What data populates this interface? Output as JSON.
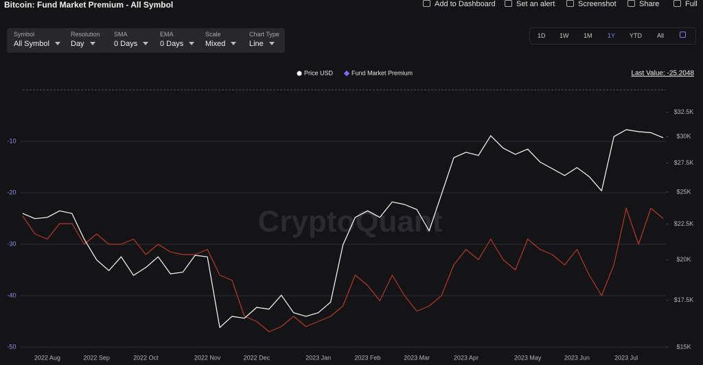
{
  "header": {
    "title": "Bitcoin: Fund Market Premium - All Symbol",
    "tools": [
      "Add to Dashboard",
      "Set an alert",
      "Screenshot",
      "Share",
      "Full"
    ]
  },
  "controls": [
    {
      "label": "Symbol",
      "value": "All Symbol"
    },
    {
      "label": "Resolution",
      "value": "Day"
    },
    {
      "label": "SMA",
      "value": "0 Days"
    },
    {
      "label": "EMA",
      "value": "0 Days"
    },
    {
      "label": "Scale",
      "value": "Mixed"
    },
    {
      "label": "Chart Type",
      "value": "Line"
    }
  ],
  "ranges": [
    "1D",
    "1W",
    "1M",
    "1Y",
    "YTD",
    "All"
  ],
  "chart_data": {
    "type": "line",
    "last_value": "Last Value: -25.2048",
    "watermark": "CryptoQuant",
    "categories": [
      null,
      null,
      "2022 Aug",
      null,
      null,
      null,
      "2022 Sep",
      null,
      null,
      null,
      "2022 Oct",
      null,
      null,
      null,
      null,
      "2022 Nov",
      null,
      null,
      null,
      "2022 Dec",
      null,
      null,
      null,
      null,
      "2023 Jan",
      null,
      null,
      null,
      "2023 Feb",
      null,
      null,
      null,
      "2023 Mar",
      null,
      null,
      null,
      "2023 Apr",
      null,
      null,
      null,
      null,
      "2023 May",
      null,
      null,
      null,
      "2023 Jun",
      null,
      null,
      null,
      "2023 Jul",
      null,
      null,
      null
    ],
    "series": [
      {
        "name": "Price USD",
        "color": "#ffffff",
        "axis": "y2",
        "values": [
          23300,
          22900,
          23000,
          23500,
          23300,
          21400,
          20000,
          19300,
          20200,
          19000,
          19500,
          20200,
          19100,
          19200,
          20300,
          20200,
          16000,
          16600,
          16500,
          17100,
          17000,
          17800,
          16800,
          16600,
          16800,
          17400,
          21000,
          23000,
          23500,
          23000,
          24200,
          24000,
          23600,
          22000,
          24800,
          28000,
          28500,
          28200,
          30100,
          28900,
          28300,
          28800,
          27600,
          27000,
          26400,
          27100,
          26300,
          25100,
          30000,
          30700,
          30500,
          30400,
          29900
        ]
      },
      {
        "name": "Fund Market Premium",
        "color": "#b33a2c",
        "values": [
          -24.5,
          -28,
          -29,
          -26,
          -26,
          -30,
          -28,
          -30,
          -30,
          -29,
          -32,
          -30,
          -31.5,
          -32,
          -32,
          -31,
          -36,
          -37,
          -44,
          -45,
          -47,
          -46,
          -44,
          -46,
          -45,
          -44,
          -42,
          -36,
          -38,
          -41,
          -36,
          -40,
          -43,
          -42,
          -40,
          -34,
          -31,
          -33,
          -29,
          -33,
          -35,
          -29,
          -31,
          -32,
          -34,
          -31,
          -36,
          -40,
          -34,
          -23,
          -30,
          -23,
          -25
        ]
      }
    ],
    "ylim": [
      -50,
      0
    ],
    "yticks": [
      -10,
      -20,
      -30,
      -40,
      -50
    ],
    "y2lim": [
      15000,
      35000
    ],
    "y2log": true,
    "y2ticks": [
      {
        "value": 32500,
        "label": "$32.5K"
      },
      {
        "value": 30000,
        "label": "$30K"
      },
      {
        "value": 27500,
        "label": "$27.5K"
      },
      {
        "value": 25000,
        "label": "$25K"
      },
      {
        "value": 22500,
        "label": "$22.5K"
      },
      {
        "value": 20000,
        "label": "$20K"
      },
      {
        "value": 17500,
        "label": "$17.5K"
      },
      {
        "value": 15000,
        "label": "$15K"
      }
    ],
    "grid": true
  }
}
